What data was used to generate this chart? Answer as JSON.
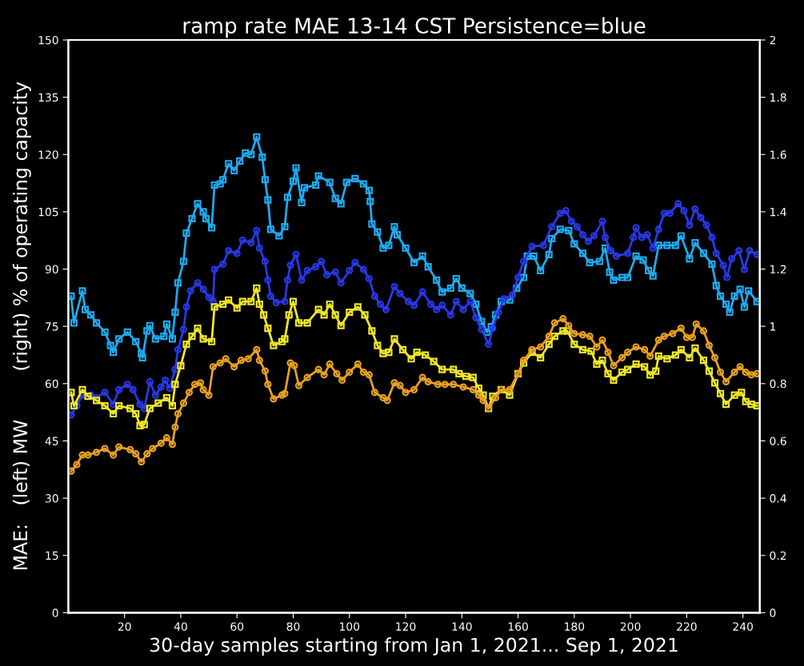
{
  "chart_data": {
    "type": "line",
    "title": "ramp rate MAE 13-14 CST Persistence=blue",
    "xlabel": "30-day samples starting from Jan 1, 2021... Sep 1, 2021",
    "ylabel": "MAE:   (left) MW        (right) % of operating capacity",
    "xlim": [
      0,
      246
    ],
    "xticks": [
      20,
      40,
      60,
      80,
      100,
      120,
      140,
      160,
      180,
      200,
      220,
      240
    ],
    "ylim": [
      0,
      150
    ],
    "yticks": [
      0,
      15,
      30,
      45,
      60,
      75,
      90,
      105,
      120,
      135,
      150
    ],
    "y2lim": [
      0,
      2
    ],
    "y2ticks": [
      0,
      0.2,
      0.4,
      0.6,
      0.8,
      1,
      1.2,
      1.4,
      1.6,
      1.8,
      2
    ],
    "grid": false,
    "legend": false,
    "series": [
      {
        "color": "#1eaaf0",
        "marker": "square",
        "x": [
          1,
          2,
          5,
          6,
          8,
          10,
          13,
          15,
          16,
          18,
          21,
          24,
          26,
          26.4,
          28,
          29,
          31,
          34,
          35,
          37,
          38,
          39,
          41,
          42,
          44,
          46,
          48,
          49,
          51,
          52,
          54,
          55,
          57,
          59,
          61,
          63,
          65,
          67,
          69,
          70,
          71,
          72,
          75,
          77,
          78,
          80,
          81,
          83,
          84,
          88,
          89,
          93,
          95,
          97,
          99,
          102,
          105,
          107,
          107.4,
          108,
          110,
          112,
          114,
          116,
          117,
          120,
          123,
          126,
          128,
          131,
          133,
          136,
          138,
          140,
          143,
          145,
          147,
          149,
          150.5,
          152,
          154,
          157,
          159.5,
          162,
          163.3,
          165.6,
          168,
          171,
          172,
          175,
          178,
          180,
          183,
          185.5,
          189,
          191,
          192.6,
          194,
          197,
          199,
          202,
          204.5,
          206.4,
          208,
          210,
          213,
          216,
          218,
          221,
          223,
          226,
          229,
          230.5,
          232,
          234,
          235.3,
          237,
          239,
          240.5,
          242,
          245
        ],
        "values": [
          82.9,
          75.9,
          84.3,
          79.4,
          78,
          75.9,
          73.5,
          70,
          68.2,
          71.7,
          73.5,
          71,
          67.9,
          66.8,
          73.8,
          75.2,
          71.7,
          72.4,
          75.6,
          71.7,
          78.7,
          86.4,
          92,
          99.4,
          103.2,
          107.1,
          105,
          103.2,
          100.8,
          112,
          112.3,
          113.4,
          117.6,
          115.8,
          118.3,
          120.4,
          120,
          124.6,
          119.3,
          113.4,
          108.1,
          100.4,
          98.7,
          101.1,
          108.8,
          113,
          116.5,
          107.4,
          111.3,
          112,
          114.4,
          112.7,
          108.5,
          107.1,
          112.7,
          113.7,
          112.3,
          110.6,
          107.7,
          101.8,
          99.7,
          95.5,
          96.2,
          101.1,
          99,
          95.5,
          91.7,
          93.4,
          90.6,
          87.1,
          84,
          85,
          87.5,
          85,
          83.6,
          80.8,
          76.3,
          73.5,
          74.9,
          78,
          81.5,
          81.9,
          85,
          87.8,
          93.4,
          93.4,
          89.6,
          93.8,
          98,
          100.4,
          100.1,
          96.6,
          94.1,
          91.7,
          92,
          95.5,
          89.2,
          87.1,
          87.8,
          87.8,
          93.4,
          92.4,
          89.6,
          88.2,
          96.2,
          96.2,
          96.2,
          98.7,
          92.7,
          96.9,
          94.1,
          91.3,
          85.7,
          82.9,
          80.8,
          78.7,
          82.9,
          84.7,
          80.1,
          84.3,
          81.5
        ]
      },
      {
        "color": "#2838e8",
        "marker": "circle",
        "x": [
          1,
          3,
          5,
          8,
          10,
          13,
          16,
          18,
          21,
          23,
          25.5,
          27,
          29,
          31,
          33,
          34.5,
          36,
          38,
          39,
          41,
          42,
          43.5,
          46,
          48,
          50,
          51.5,
          52,
          55,
          57,
          60,
          62,
          65,
          67,
          68,
          70,
          71,
          72,
          74,
          77,
          78,
          79,
          81,
          83,
          85,
          88,
          90,
          92,
          95,
          97,
          100,
          102,
          105,
          107,
          109,
          111,
          113,
          116,
          118,
          121,
          123,
          126,
          129,
          131,
          133,
          136,
          138,
          140.5,
          143,
          145,
          147,
          149.5,
          151,
          153,
          155,
          158,
          160,
          162,
          165,
          169,
          172,
          175,
          177,
          179,
          181,
          183,
          185,
          187,
          190,
          191,
          193,
          195,
          199,
          201,
          202,
          204,
          206,
          208,
          210,
          212,
          214,
          217,
          219,
          221,
          223,
          225,
          227,
          229,
          230.5,
          233,
          234.3,
          236,
          238.6,
          240.5,
          242.4,
          245
        ],
        "values": [
          51.8,
          54.2,
          57,
          57,
          56.3,
          57.7,
          54.6,
          58.4,
          59.8,
          58.4,
          54.6,
          53.5,
          60.5,
          57,
          59.1,
          60.9,
          58.8,
          63.7,
          68.9,
          74.2,
          80.1,
          84.3,
          86.4,
          84.7,
          82.6,
          81.5,
          89.9,
          91.3,
          94.8,
          94.1,
          97.6,
          96.9,
          100.1,
          95.5,
          92,
          87.1,
          82.9,
          81.2,
          81.5,
          87.1,
          91,
          93.8,
          87.1,
          89.6,
          90.6,
          92,
          88.5,
          89.2,
          86.4,
          89.6,
          91.7,
          89.9,
          87.5,
          82.9,
          80.8,
          79.4,
          85.4,
          83.6,
          81.5,
          80.5,
          84,
          80.8,
          79.4,
          80.5,
          78,
          81.5,
          79.4,
          81.5,
          77.3,
          74.2,
          70.3,
          74.5,
          78.7,
          82.2,
          83.2,
          87.8,
          92,
          95.9,
          96.2,
          101.1,
          104.6,
          105.3,
          102.5,
          101.1,
          99,
          97.3,
          98.7,
          102.5,
          98.3,
          94.8,
          93.4,
          94.1,
          98.3,
          100.8,
          98.3,
          99,
          95.5,
          100.4,
          104.6,
          104.6,
          107.1,
          105.3,
          101.5,
          105.7,
          103.5,
          101.5,
          98.3,
          94.1,
          91,
          87.8,
          92.7,
          94.8,
          89.9,
          94.8,
          93.8
        ]
      },
      {
        "color": "#f0e628",
        "marker": "square",
        "x": [
          1,
          2,
          5,
          7,
          10,
          13,
          16,
          18,
          22,
          24,
          25.5,
          27,
          29,
          32,
          35,
          37,
          38,
          40,
          42,
          44,
          46,
          48,
          51,
          52,
          55,
          57,
          60,
          62,
          65,
          67,
          68,
          69.5,
          71,
          73,
          76,
          77,
          78.5,
          80,
          82,
          85,
          89,
          91,
          93,
          95,
          97,
          100,
          103,
          105.5,
          108,
          110,
          112,
          114,
          116,
          119,
          122,
          124,
          127,
          130,
          133,
          137,
          139,
          141.5,
          144,
          146,
          147.6,
          149.5,
          151,
          154,
          157,
          160,
          162,
          165,
          168,
          171,
          173,
          176,
          177.5,
          180,
          183,
          186,
          188,
          190,
          192,
          194,
          197,
          199,
          202,
          205,
          207,
          209,
          210,
          213,
          216,
          218,
          221,
          223,
          226,
          228,
          230,
          232,
          234,
          237,
          239.5,
          241,
          243,
          245
        ],
        "values": [
          57.7,
          54.2,
          58.4,
          56.7,
          55.6,
          54.2,
          52.1,
          54.2,
          53.5,
          52.1,
          49,
          49.3,
          53.5,
          54.9,
          56.3,
          54.2,
          59.8,
          64.7,
          70.3,
          72.4,
          74.5,
          71.7,
          71,
          80.1,
          80.8,
          81.9,
          79.8,
          81.5,
          81.5,
          85,
          80.8,
          78,
          74.5,
          70,
          71,
          71.7,
          78,
          81.5,
          75.9,
          75.9,
          79.4,
          78,
          80.8,
          78,
          75.2,
          78.7,
          80.1,
          78,
          73.8,
          70,
          67.9,
          68.2,
          71.7,
          68.9,
          66.5,
          68.2,
          67.5,
          65.8,
          63.7,
          63.7,
          62.6,
          61.9,
          61.6,
          58.8,
          57,
          53.5,
          56.7,
          58.4,
          57,
          62.6,
          65.4,
          68.2,
          66.8,
          70.3,
          72.4,
          73.8,
          73.8,
          70.3,
          68.9,
          68.5,
          65.1,
          66.1,
          62.6,
          60.9,
          63,
          63.7,
          65.1,
          64.4,
          62.3,
          63.3,
          67.2,
          66.5,
          67.5,
          68.9,
          66.8,
          69.3,
          66.1,
          63.3,
          60.2,
          57.4,
          54.6,
          57,
          57.7,
          55.3,
          54.6,
          54.2
        ]
      },
      {
        "color": "#e8a020",
        "marker": "circle",
        "x": [
          1,
          3,
          5,
          7,
          10,
          13,
          16,
          18,
          22,
          24,
          26,
          28,
          30,
          33,
          35,
          37,
          38,
          39,
          41,
          43,
          45,
          47,
          48,
          50,
          51.5,
          54,
          56,
          59,
          61.5,
          64,
          67,
          68,
          70,
          71,
          73,
          76,
          77,
          79,
          80.4,
          82,
          85,
          89,
          91,
          93,
          95.5,
          97.4,
          100,
          103,
          105,
          107,
          109,
          112,
          113.5,
          116,
          118,
          120,
          123,
          126,
          128,
          131.5,
          134,
          137,
          140.5,
          144,
          146,
          147.6,
          149.5,
          152,
          154,
          157,
          160,
          162,
          165,
          168,
          171,
          173,
          176,
          178,
          180,
          183,
          185.5,
          188,
          190,
          192,
          194,
          197,
          199,
          202,
          205,
          207,
          210,
          212,
          215,
          218,
          220,
          222,
          223.4,
          226,
          228,
          230,
          232,
          234,
          237,
          239,
          241,
          243,
          245
        ],
        "values": [
          37.1,
          38.8,
          41.3,
          41.3,
          42,
          43,
          41.3,
          43.4,
          42.7,
          41.6,
          39.5,
          41.6,
          43,
          44.4,
          45.8,
          44.1,
          48.6,
          52.1,
          54.9,
          57.7,
          59.8,
          60.2,
          58.4,
          57,
          64.4,
          65.4,
          66.5,
          64.4,
          66.1,
          66.5,
          68.9,
          66.1,
          63.3,
          59.8,
          56,
          57,
          57.4,
          65.4,
          64.7,
          59.5,
          61.6,
          63.7,
          62.3,
          65.1,
          62.6,
          60.9,
          63,
          65.1,
          63,
          62.3,
          57.7,
          56.3,
          55.6,
          60.2,
          59.5,
          57.7,
          58.4,
          61.6,
          60.5,
          59.8,
          59.8,
          59.8,
          59.1,
          58.4,
          57,
          55.6,
          53.5,
          56.3,
          58.4,
          58.4,
          62.6,
          66.1,
          68.9,
          69.6,
          72.4,
          75.9,
          77,
          75.2,
          73.1,
          72.8,
          72.4,
          69.6,
          71.4,
          68.2,
          64.7,
          66.8,
          68.2,
          69.6,
          68.9,
          67.2,
          71.4,
          72.4,
          73.1,
          74.5,
          72.1,
          72.1,
          75.6,
          73.8,
          70,
          66.8,
          63,
          60.5,
          63,
          64.4,
          63,
          62.3,
          62.6
        ]
      }
    ]
  }
}
